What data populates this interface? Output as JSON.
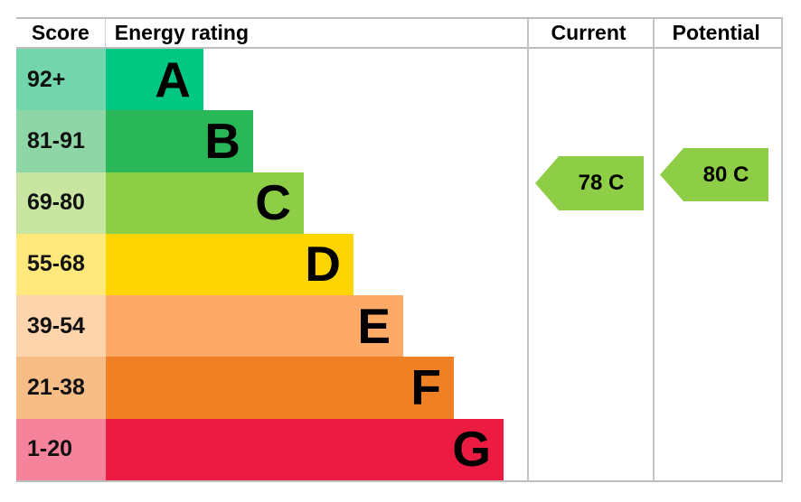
{
  "header": {
    "score": "Score",
    "energy_rating": "Energy rating",
    "current": "Current",
    "potential": "Potential"
  },
  "bands": [
    {
      "letter": "A",
      "score_range": "92+",
      "bar_color": "#00c781",
      "score_cell_color": "#72d5ab"
    },
    {
      "letter": "B",
      "score_range": "81-91",
      "bar_color": "#2ab757",
      "score_cell_color": "#8fd6a6"
    },
    {
      "letter": "C",
      "score_range": "69-80",
      "bar_color": "#8dce46",
      "score_cell_color": "#c8e6a2"
    },
    {
      "letter": "D",
      "score_range": "55-68",
      "bar_color": "#ffd500",
      "score_cell_color": "#ffe97d"
    },
    {
      "letter": "E",
      "score_range": "39-54",
      "bar_color": "#fcaa65",
      "score_cell_color": "#fdd4ab"
    },
    {
      "letter": "F",
      "score_range": "21-38",
      "bar_color": "#ef8023",
      "score_cell_color": "#f7bd87"
    },
    {
      "letter": "G",
      "score_range": "1-20",
      "bar_color": "#ec1b41",
      "score_cell_color": "#f4839b"
    }
  ],
  "arrows": {
    "current": {
      "label": "78 C",
      "score": 78,
      "rating": "C",
      "color": "#8dce46"
    },
    "potential": {
      "label": "80 C",
      "score": 80,
      "rating": "C",
      "color": "#8dce46"
    }
  },
  "border_color": "#c4c4c4",
  "chart_data": {
    "type": "bar",
    "title": "Energy rating",
    "columns": [
      "Score",
      "Energy rating",
      "Current",
      "Potential"
    ],
    "categories": [
      "A",
      "B",
      "C",
      "D",
      "E",
      "F",
      "G"
    ],
    "score_ranges": [
      "92+",
      "81-91",
      "69-80",
      "55-68",
      "39-54",
      "21-38",
      "1-20"
    ],
    "bar_colors": [
      "#00c781",
      "#2ab757",
      "#8dce46",
      "#ffd500",
      "#fcaa65",
      "#ef8023",
      "#ec1b41"
    ],
    "current": {
      "score": 78,
      "rating": "C"
    },
    "potential": {
      "score": 80,
      "rating": "C"
    },
    "legend_position": "none",
    "grid": false
  }
}
